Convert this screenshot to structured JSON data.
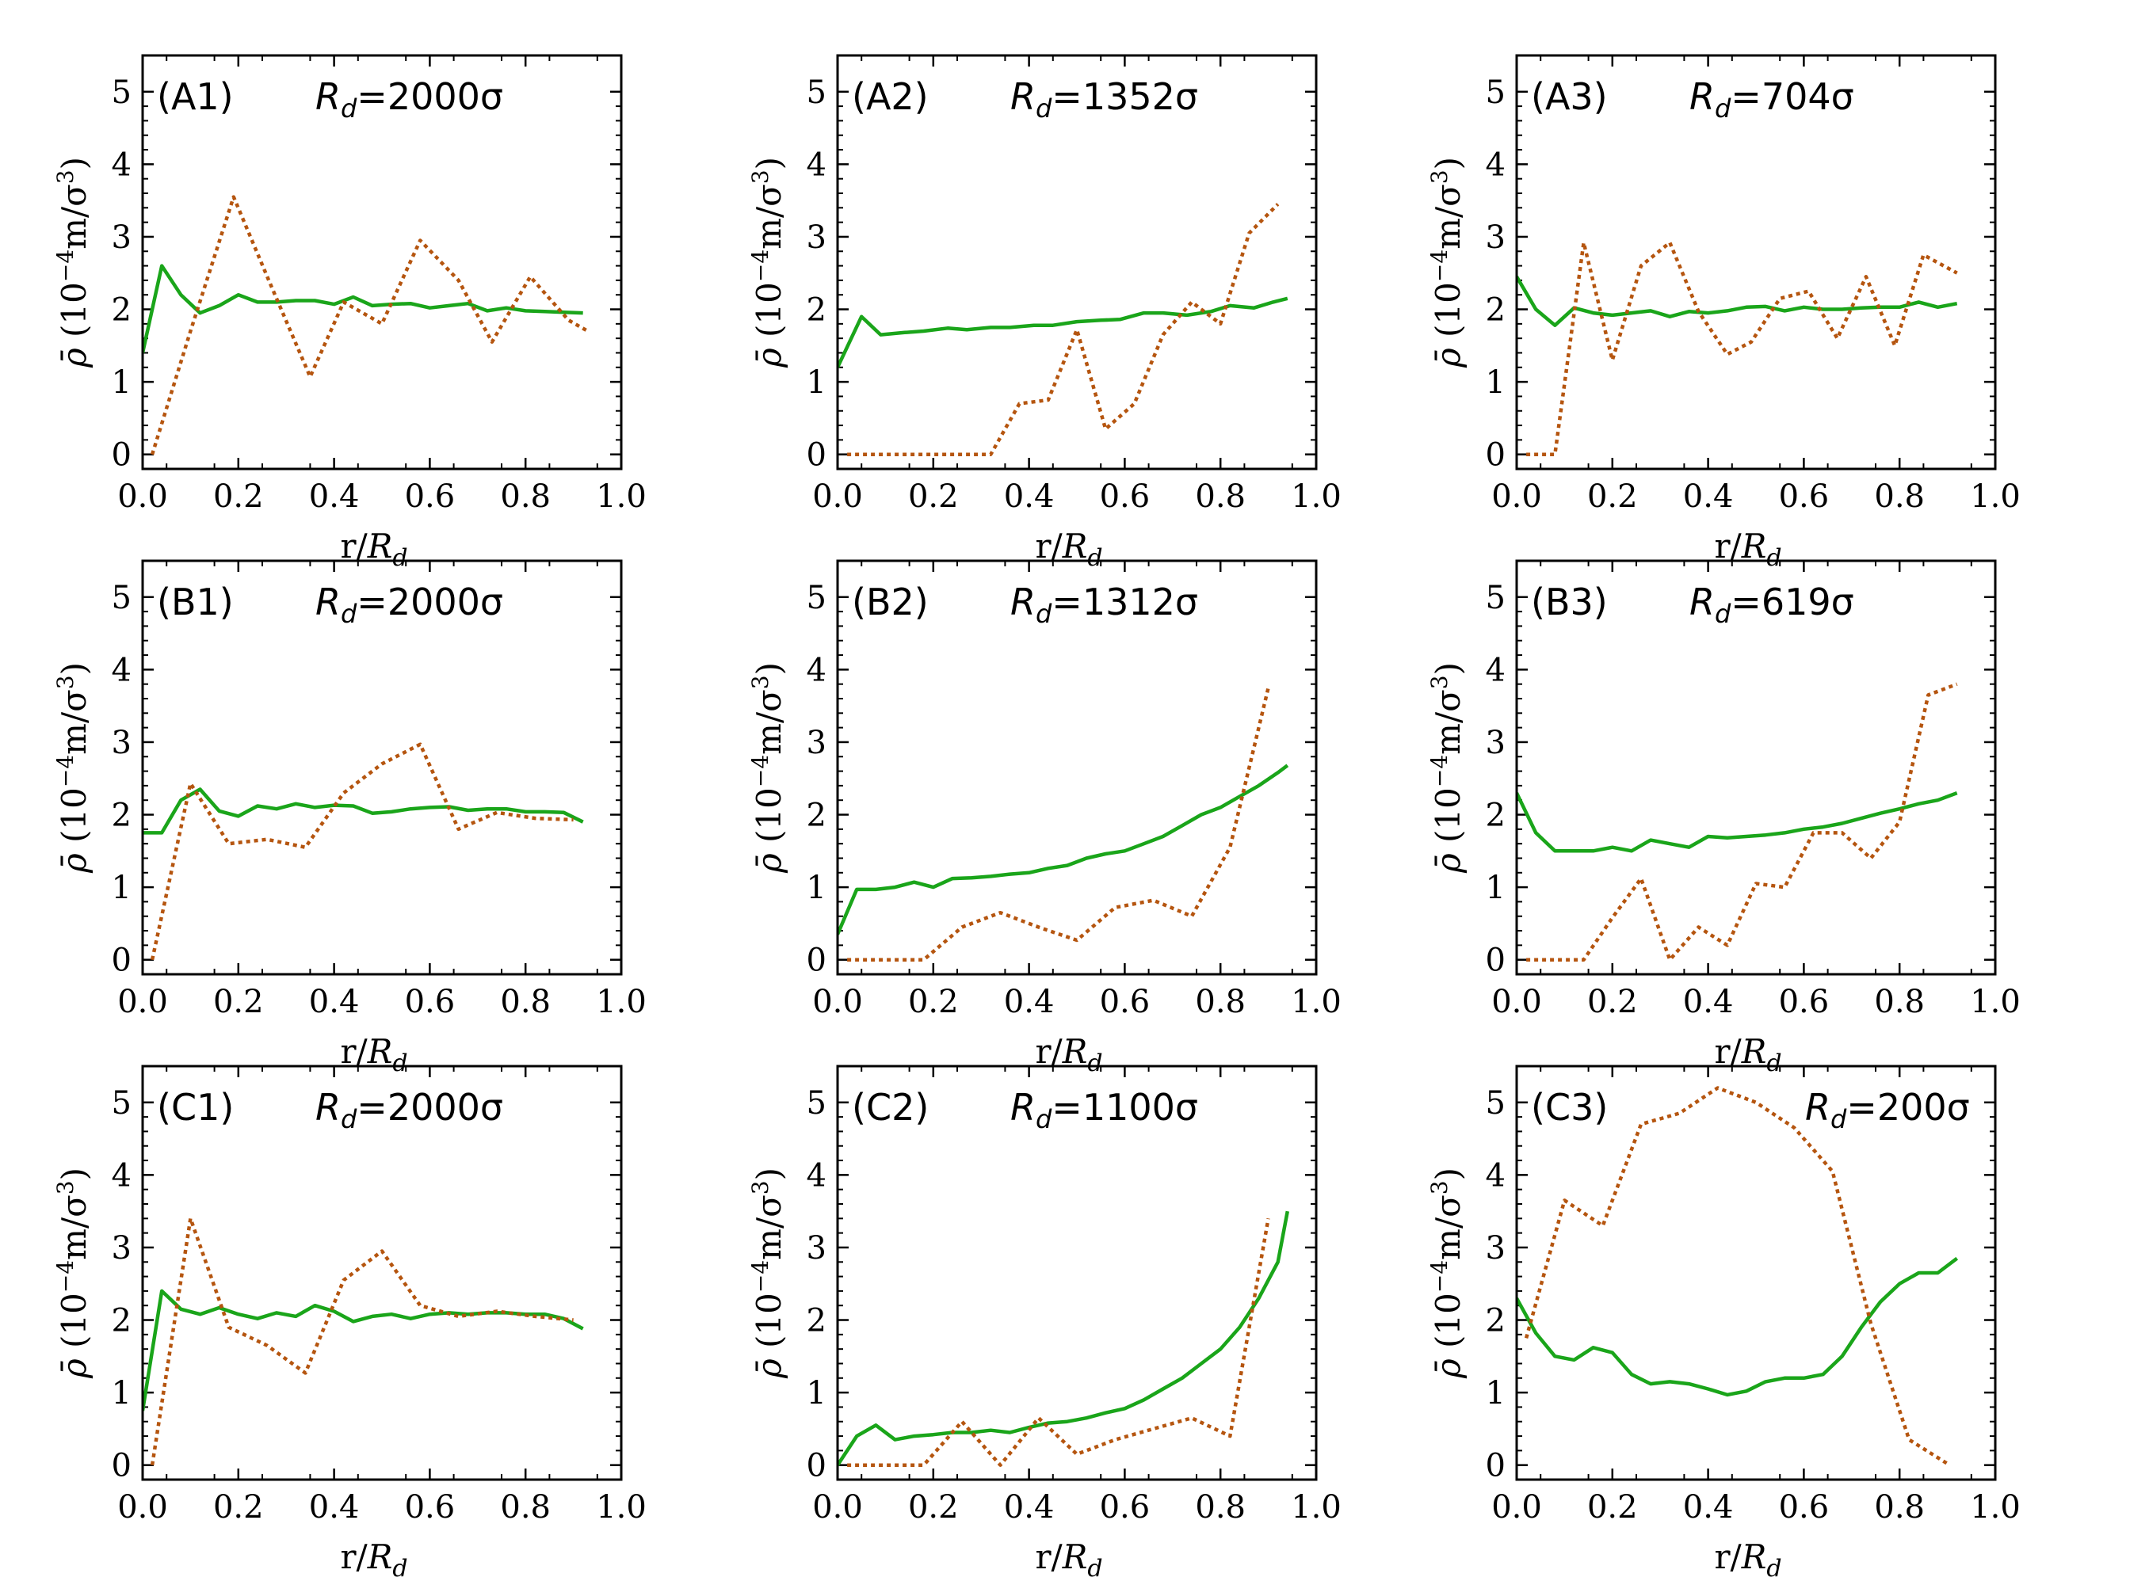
{
  "colors": {
    "solid": "#1aa51a",
    "dotted": "#b5550f"
  },
  "common": {
    "xlabel_main": "r/",
    "xlabel_var": "R",
    "xlabel_sub": "d",
    "ylabel_rho": "ρ̄",
    "ylabel_open": " (10",
    "ylabel_exp1": "−4",
    "ylabel_mid": "m/σ",
    "ylabel_exp2": "3",
    "ylabel_close": ")",
    "xlim": [
      0,
      1
    ],
    "ylim": [
      0,
      5.3
    ],
    "xticks": [
      "0.0",
      "0.2",
      "0.4",
      "0.6",
      "0.8",
      "1.0"
    ],
    "yticks": [
      "0",
      "1",
      "2",
      "3",
      "4",
      "5"
    ]
  },
  "chart_data": [
    {
      "type": "line",
      "panel": "(A1)",
      "rd_var": "R",
      "rd_sub": "d",
      "rd_value": "=2000σ",
      "series": [
        {
          "name": "solid",
          "x": [
            0.0,
            0.04,
            0.08,
            0.12,
            0.16,
            0.2,
            0.24,
            0.28,
            0.32,
            0.36,
            0.4,
            0.44,
            0.48,
            0.52,
            0.56,
            0.6,
            0.64,
            0.68,
            0.72,
            0.76,
            0.8,
            0.84,
            0.88,
            0.92
          ],
          "y": [
            1.4,
            2.6,
            2.2,
            1.95,
            2.05,
            2.2,
            2.1,
            2.1,
            2.12,
            2.12,
            2.07,
            2.17,
            2.05,
            2.07,
            2.08,
            2.02,
            2.05,
            2.08,
            1.98,
            2.02,
            1.98,
            1.97,
            1.96,
            1.95
          ]
        },
        {
          "name": "dotted",
          "x": [
            0.02,
            0.1,
            0.19,
            0.27,
            0.35,
            0.42,
            0.5,
            0.58,
            0.66,
            0.73,
            0.81,
            0.89,
            0.93
          ],
          "y": [
            0.0,
            1.7,
            3.55,
            2.3,
            1.07,
            2.1,
            1.8,
            2.95,
            2.4,
            1.55,
            2.45,
            1.85,
            1.7
          ]
        }
      ]
    },
    {
      "type": "line",
      "panel": "(A2)",
      "rd_var": "R",
      "rd_sub": "d",
      "rd_value": "=1352σ",
      "series": [
        {
          "name": "solid",
          "x": [
            0.0,
            0.05,
            0.09,
            0.14,
            0.18,
            0.23,
            0.27,
            0.32,
            0.36,
            0.41,
            0.45,
            0.5,
            0.55,
            0.59,
            0.64,
            0.68,
            0.73,
            0.78,
            0.82,
            0.87,
            0.91,
            0.94
          ],
          "y": [
            1.2,
            1.9,
            1.65,
            1.68,
            1.7,
            1.74,
            1.72,
            1.75,
            1.75,
            1.78,
            1.78,
            1.83,
            1.85,
            1.86,
            1.95,
            1.95,
            1.92,
            1.97,
            2.05,
            2.02,
            2.1,
            2.15
          ]
        },
        {
          "name": "dotted",
          "x": [
            0.02,
            0.1,
            0.18,
            0.26,
            0.32,
            0.38,
            0.44,
            0.5,
            0.56,
            0.62,
            0.68,
            0.74,
            0.8,
            0.86,
            0.92
          ],
          "y": [
            0.0,
            0.0,
            0.0,
            0.0,
            0.0,
            0.7,
            0.75,
            1.72,
            0.35,
            0.7,
            1.65,
            2.1,
            1.8,
            3.05,
            3.45
          ]
        }
      ]
    },
    {
      "type": "line",
      "panel": "(A3)",
      "rd_var": "R",
      "rd_sub": "d",
      "rd_value": "=704σ",
      "series": [
        {
          "name": "solid",
          "x": [
            0.0,
            0.04,
            0.08,
            0.12,
            0.16,
            0.2,
            0.24,
            0.28,
            0.32,
            0.36,
            0.4,
            0.44,
            0.48,
            0.52,
            0.56,
            0.6,
            0.64,
            0.68,
            0.72,
            0.76,
            0.8,
            0.84,
            0.88,
            0.92
          ],
          "y": [
            2.45,
            2.0,
            1.78,
            2.02,
            1.95,
            1.92,
            1.95,
            1.98,
            1.9,
            1.97,
            1.95,
            1.98,
            2.03,
            2.04,
            1.98,
            2.03,
            2.0,
            2.0,
            2.02,
            2.03,
            2.03,
            2.1,
            2.03,
            2.08
          ]
        },
        {
          "name": "dotted",
          "x": [
            0.02,
            0.05,
            0.08,
            0.14,
            0.2,
            0.26,
            0.32,
            0.38,
            0.44,
            0.49,
            0.55,
            0.61,
            0.67,
            0.73,
            0.79,
            0.85,
            0.92
          ],
          "y": [
            0.0,
            0.0,
            0.0,
            2.92,
            1.3,
            2.6,
            2.92,
            1.97,
            1.38,
            1.55,
            2.15,
            2.25,
            1.6,
            2.45,
            1.5,
            2.75,
            2.5
          ]
        }
      ]
    },
    {
      "type": "line",
      "panel": "(B1)",
      "rd_var": "R",
      "rd_sub": "d",
      "rd_value": "=2000σ",
      "series": [
        {
          "name": "solid",
          "x": [
            0.0,
            0.04,
            0.08,
            0.12,
            0.16,
            0.2,
            0.24,
            0.28,
            0.32,
            0.36,
            0.4,
            0.44,
            0.48,
            0.52,
            0.56,
            0.6,
            0.64,
            0.68,
            0.72,
            0.76,
            0.8,
            0.84,
            0.88,
            0.92
          ],
          "y": [
            1.75,
            1.75,
            2.2,
            2.35,
            2.05,
            1.98,
            2.12,
            2.08,
            2.15,
            2.1,
            2.13,
            2.12,
            2.02,
            2.04,
            2.08,
            2.1,
            2.11,
            2.06,
            2.08,
            2.08,
            2.04,
            2.04,
            2.03,
            1.9
          ]
        },
        {
          "name": "dotted",
          "x": [
            0.02,
            0.1,
            0.18,
            0.26,
            0.34,
            0.42,
            0.5,
            0.58,
            0.66,
            0.74,
            0.82,
            0.9
          ],
          "y": [
            0.0,
            2.43,
            1.6,
            1.66,
            1.55,
            2.3,
            2.7,
            2.97,
            1.8,
            2.03,
            1.95,
            1.93
          ]
        }
      ]
    },
    {
      "type": "line",
      "panel": "(B2)",
      "rd_var": "R",
      "rd_sub": "d",
      "rd_value": "=1312σ",
      "series": [
        {
          "name": "solid",
          "x": [
            0.0,
            0.04,
            0.08,
            0.12,
            0.16,
            0.2,
            0.24,
            0.28,
            0.32,
            0.36,
            0.4,
            0.44,
            0.48,
            0.52,
            0.56,
            0.6,
            0.64,
            0.68,
            0.72,
            0.76,
            0.8,
            0.84,
            0.88,
            0.92,
            0.94
          ],
          "y": [
            0.35,
            0.97,
            0.97,
            1.0,
            1.07,
            1.0,
            1.12,
            1.13,
            1.15,
            1.18,
            1.2,
            1.26,
            1.3,
            1.4,
            1.46,
            1.5,
            1.6,
            1.7,
            1.85,
            2.0,
            2.1,
            2.25,
            2.4,
            2.58,
            2.68
          ]
        },
        {
          "name": "dotted",
          "x": [
            0.02,
            0.1,
            0.18,
            0.26,
            0.34,
            0.42,
            0.5,
            0.58,
            0.66,
            0.74,
            0.82,
            0.9
          ],
          "y": [
            0.0,
            0.0,
            0.0,
            0.45,
            0.65,
            0.45,
            0.27,
            0.72,
            0.82,
            0.6,
            1.55,
            3.75
          ]
        }
      ]
    },
    {
      "type": "line",
      "panel": "(B3)",
      "rd_var": "R",
      "rd_sub": "d",
      "rd_value": "=619σ",
      "series": [
        {
          "name": "solid",
          "x": [
            0.0,
            0.04,
            0.08,
            0.12,
            0.16,
            0.2,
            0.24,
            0.28,
            0.32,
            0.36,
            0.4,
            0.44,
            0.48,
            0.52,
            0.56,
            0.6,
            0.64,
            0.68,
            0.72,
            0.76,
            0.8,
            0.84,
            0.88,
            0.92
          ],
          "y": [
            2.3,
            1.75,
            1.5,
            1.5,
            1.5,
            1.55,
            1.5,
            1.65,
            1.6,
            1.55,
            1.7,
            1.68,
            1.7,
            1.72,
            1.75,
            1.8,
            1.83,
            1.88,
            1.95,
            2.02,
            2.08,
            2.15,
            2.2,
            2.3
          ]
        },
        {
          "name": "dotted",
          "x": [
            0.02,
            0.08,
            0.14,
            0.2,
            0.26,
            0.32,
            0.38,
            0.44,
            0.5,
            0.56,
            0.62,
            0.68,
            0.74,
            0.8,
            0.86,
            0.92
          ],
          "y": [
            0.0,
            0.0,
            0.0,
            0.58,
            1.12,
            0.0,
            0.45,
            0.2,
            1.05,
            1.0,
            1.75,
            1.75,
            1.4,
            1.9,
            3.65,
            3.8
          ]
        }
      ]
    },
    {
      "type": "line",
      "panel": "(C1)",
      "rd_var": "R",
      "rd_sub": "d",
      "rd_value": "=2000σ",
      "series": [
        {
          "name": "solid",
          "x": [
            0.0,
            0.04,
            0.08,
            0.12,
            0.16,
            0.2,
            0.24,
            0.28,
            0.32,
            0.36,
            0.4,
            0.44,
            0.48,
            0.52,
            0.56,
            0.6,
            0.64,
            0.68,
            0.72,
            0.76,
            0.8,
            0.84,
            0.88,
            0.92
          ],
          "y": [
            0.75,
            2.4,
            2.15,
            2.08,
            2.17,
            2.08,
            2.02,
            2.1,
            2.05,
            2.2,
            2.12,
            1.98,
            2.05,
            2.08,
            2.02,
            2.08,
            2.1,
            2.08,
            2.1,
            2.1,
            2.08,
            2.08,
            2.02,
            1.88
          ]
        },
        {
          "name": "dotted",
          "x": [
            0.02,
            0.1,
            0.18,
            0.26,
            0.34,
            0.42,
            0.5,
            0.58,
            0.66,
            0.74,
            0.82,
            0.9
          ],
          "y": [
            0.0,
            3.4,
            1.9,
            1.65,
            1.27,
            2.55,
            2.95,
            2.2,
            2.05,
            2.12,
            2.05,
            2.0
          ]
        }
      ]
    },
    {
      "type": "line",
      "panel": "(C2)",
      "rd_var": "R",
      "rd_sub": "d",
      "rd_value": "=1100σ",
      "series": [
        {
          "name": "solid",
          "x": [
            0.0,
            0.04,
            0.08,
            0.12,
            0.16,
            0.2,
            0.24,
            0.28,
            0.32,
            0.36,
            0.4,
            0.44,
            0.48,
            0.52,
            0.56,
            0.6,
            0.64,
            0.68,
            0.72,
            0.76,
            0.8,
            0.84,
            0.88,
            0.92,
            0.94
          ],
          "y": [
            0.0,
            0.4,
            0.55,
            0.35,
            0.4,
            0.42,
            0.45,
            0.45,
            0.48,
            0.45,
            0.52,
            0.58,
            0.6,
            0.65,
            0.72,
            0.78,
            0.9,
            1.05,
            1.2,
            1.4,
            1.6,
            1.9,
            2.3,
            2.8,
            3.5
          ]
        },
        {
          "name": "dotted",
          "x": [
            0.02,
            0.1,
            0.18,
            0.26,
            0.34,
            0.42,
            0.5,
            0.58,
            0.66,
            0.74,
            0.82,
            0.9
          ],
          "y": [
            0.0,
            0.0,
            0.0,
            0.6,
            0.0,
            0.65,
            0.15,
            0.35,
            0.5,
            0.65,
            0.4,
            3.4
          ]
        }
      ]
    },
    {
      "type": "line",
      "panel": "(C3)",
      "rd_var": "R",
      "rd_sub": "d",
      "rd_value": "=200σ",
      "series": [
        {
          "name": "solid",
          "x": [
            0.0,
            0.04,
            0.08,
            0.12,
            0.16,
            0.2,
            0.24,
            0.28,
            0.32,
            0.36,
            0.4,
            0.44,
            0.48,
            0.52,
            0.56,
            0.6,
            0.64,
            0.68,
            0.72,
            0.76,
            0.8,
            0.84,
            0.88,
            0.92
          ],
          "y": [
            2.3,
            1.82,
            1.5,
            1.45,
            1.62,
            1.55,
            1.25,
            1.12,
            1.15,
            1.12,
            1.05,
            0.97,
            1.02,
            1.15,
            1.2,
            1.2,
            1.25,
            1.5,
            1.9,
            2.25,
            2.5,
            2.65,
            2.65,
            2.85
          ]
        },
        {
          "name": "dotted",
          "x": [
            0.02,
            0.1,
            0.18,
            0.26,
            0.34,
            0.42,
            0.5,
            0.58,
            0.66,
            0.74,
            0.82,
            0.9
          ],
          "y": [
            1.75,
            3.65,
            3.3,
            4.7,
            4.85,
            5.2,
            5.0,
            4.65,
            4.05,
            1.95,
            0.35,
            0.02
          ]
        }
      ]
    }
  ]
}
